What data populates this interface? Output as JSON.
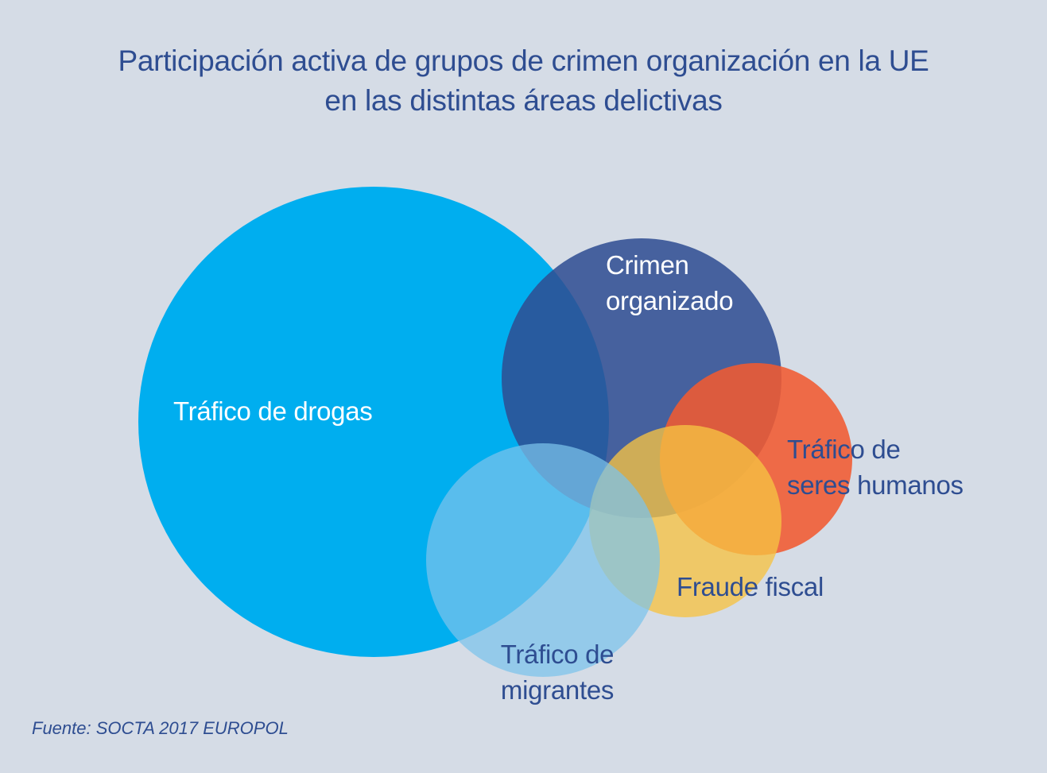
{
  "title": {
    "line1": "Participación activa de grupos de crimen organización en la UE",
    "line2": "en las distintas áreas delictivas"
  },
  "circles": [
    {
      "id": "drogas",
      "lines": [
        "Tráfico de drogas"
      ],
      "color": "#00aeef"
    },
    {
      "id": "crimen",
      "lines": [
        "Crimen",
        "organizado"
      ],
      "color": "#2e4d91"
    },
    {
      "id": "seres",
      "lines": [
        "Tráfico de",
        "seres humanos"
      ],
      "color": "#f15a31"
    },
    {
      "id": "fraude",
      "lines": [
        "Fraude fiscal"
      ],
      "color": "#f6c343"
    },
    {
      "id": "migrantes",
      "lines": [
        "Tráfico de",
        "migrantes"
      ],
      "color": "#7cc4ec"
    }
  ],
  "source": "Fuente: SOCTA 2017 EUROPOL"
}
